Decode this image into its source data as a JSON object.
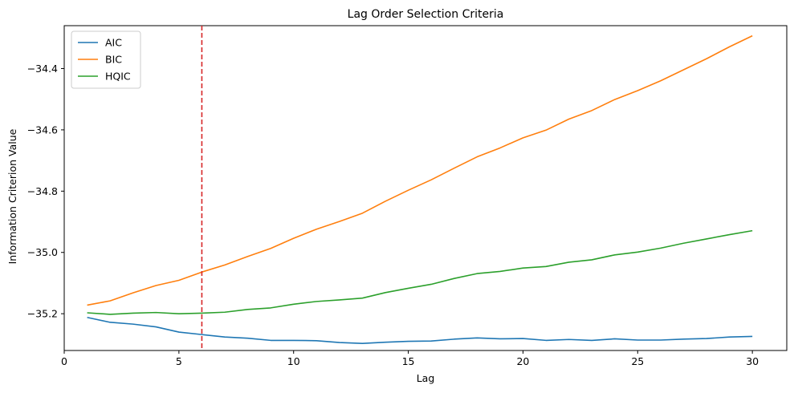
{
  "chart_data": {
    "type": "line",
    "title": "Lag Order Selection Criteria",
    "xlabel": "Lag",
    "ylabel": "Information Criterion Value",
    "xlim": [
      0,
      31.5
    ],
    "ylim": [
      -35.32,
      -34.26
    ],
    "xticks": [
      0,
      5,
      10,
      15,
      20,
      25,
      30
    ],
    "yticks": [
      -35.2,
      -35.0,
      -34.8,
      -34.6,
      -34.4
    ],
    "ytick_labels": [
      "−35.2",
      "−35.0",
      "−34.8",
      "−34.6",
      "−34.4"
    ],
    "grid": false,
    "legend_position": "top-left",
    "x": [
      1,
      2,
      3,
      4,
      5,
      6,
      7,
      8,
      9,
      10,
      11,
      12,
      13,
      14,
      15,
      16,
      17,
      18,
      19,
      20,
      21,
      22,
      23,
      24,
      25,
      26,
      27,
      28,
      29,
      30
    ],
    "series": [
      {
        "name": "AIC",
        "color": "#1f77b4",
        "values": [
          -35.212,
          -35.228,
          -35.234,
          -35.243,
          -35.26,
          -35.268,
          -35.276,
          -35.28,
          -35.287,
          -35.287,
          -35.288,
          -35.294,
          -35.297,
          -35.293,
          -35.29,
          -35.289,
          -35.283,
          -35.279,
          -35.282,
          -35.281,
          -35.287,
          -35.284,
          -35.287,
          -35.282,
          -35.286,
          -35.286,
          -35.283,
          -35.281,
          -35.276,
          -35.274
        ]
      },
      {
        "name": "BIC",
        "color": "#ff7f0e",
        "values": [
          -35.172,
          -35.158,
          -35.132,
          -35.108,
          -35.091,
          -35.064,
          -35.041,
          -35.013,
          -34.987,
          -34.954,
          -34.924,
          -34.899,
          -34.872,
          -34.833,
          -34.797,
          -34.763,
          -34.725,
          -34.688,
          -34.659,
          -34.626,
          -34.601,
          -34.565,
          -34.537,
          -34.501,
          -34.472,
          -34.44,
          -34.404,
          -34.368,
          -34.329,
          -34.293
        ]
      },
      {
        "name": "HQIC",
        "color": "#2ca02c",
        "values": [
          -35.197,
          -35.202,
          -35.198,
          -35.196,
          -35.2,
          -35.198,
          -35.195,
          -35.186,
          -35.181,
          -35.169,
          -35.16,
          -35.155,
          -35.149,
          -35.131,
          -35.117,
          -35.104,
          -35.085,
          -35.069,
          -35.062,
          -35.051,
          -35.046,
          -35.032,
          -35.024,
          -35.008,
          -34.999,
          -34.986,
          -34.97,
          -34.956,
          -34.942,
          -34.929
        ]
      }
    ],
    "vline": {
      "x": 6,
      "color": "#d62728",
      "style": "dashed"
    }
  }
}
